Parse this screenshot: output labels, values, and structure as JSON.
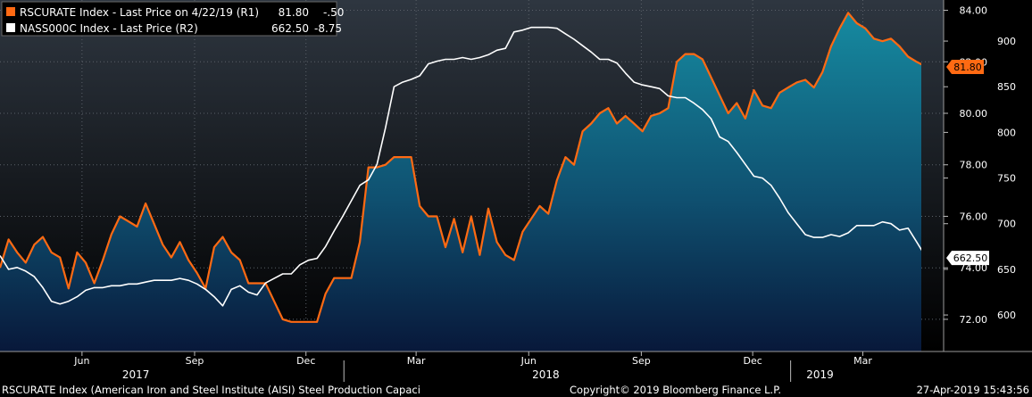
{
  "chart_data": {
    "type": "line",
    "x_axis": {
      "month_labels": [
        "Jun",
        "Sep",
        "Dec",
        "Mar",
        "Jun",
        "Sep",
        "Dec",
        "Mar"
      ],
      "month_dates": [
        "2017-06-01",
        "2017-09-01",
        "2017-12-01",
        "2018-03-01",
        "2018-06-01",
        "2018-09-01",
        "2018-12-01",
        "2019-03-01"
      ],
      "year_labels": [
        "2017",
        "2018",
        "2019"
      ],
      "year_dates": [
        "2017-07-15",
        "2018-06-15",
        "2019-01-25"
      ],
      "range": [
        "2017-03-26",
        "2019-05-06"
      ]
    },
    "y_axes": [
      {
        "id": "R1",
        "side": "right",
        "range": [
          70.75,
          84.4
        ],
        "ticks": [
          "72.00",
          "74.00",
          "76.00",
          "78.00",
          "80.00",
          "82.00",
          "84.00"
        ]
      },
      {
        "id": "R2",
        "side": "right",
        "range": [
          560,
          945
        ],
        "ticks": [
          "600",
          "650",
          "700",
          "750",
          "800",
          "850",
          "900"
        ]
      }
    ],
    "grid": true,
    "series": [
      {
        "name": "RSCURATE Index",
        "axis": "R1",
        "color": "#ff6a13",
        "fill": "gradient-teal",
        "last_value": "81.80",
        "points": [
          [
            "2017-03-26",
            74.0
          ],
          [
            "2017-04-02",
            75.1
          ],
          [
            "2017-04-09",
            74.6
          ],
          [
            "2017-04-16",
            74.2
          ],
          [
            "2017-04-23",
            74.9
          ],
          [
            "2017-04-30",
            75.2
          ],
          [
            "2017-05-07",
            74.6
          ],
          [
            "2017-05-14",
            74.4
          ],
          [
            "2017-05-21",
            73.2
          ],
          [
            "2017-05-28",
            74.6
          ],
          [
            "2017-06-04",
            74.2
          ],
          [
            "2017-06-11",
            73.4
          ],
          [
            "2017-06-18",
            74.3
          ],
          [
            "2017-06-25",
            75.3
          ],
          [
            "2017-07-02",
            76.0
          ],
          [
            "2017-07-09",
            75.8
          ],
          [
            "2017-07-16",
            75.6
          ],
          [
            "2017-07-23",
            76.5
          ],
          [
            "2017-07-30",
            75.7
          ],
          [
            "2017-08-06",
            74.9
          ],
          [
            "2017-08-13",
            74.4
          ],
          [
            "2017-08-20",
            75.0
          ],
          [
            "2017-08-27",
            74.3
          ],
          [
            "2017-09-03",
            73.8
          ],
          [
            "2017-09-10",
            73.2
          ],
          [
            "2017-09-17",
            74.8
          ],
          [
            "2017-09-24",
            75.2
          ],
          [
            "2017-10-01",
            74.6
          ],
          [
            "2017-10-08",
            74.3
          ],
          [
            "2017-10-15",
            73.4
          ],
          [
            "2017-10-22",
            73.4
          ],
          [
            "2017-10-29",
            73.4
          ],
          [
            "2017-11-05",
            72.7
          ],
          [
            "2017-11-12",
            72.0
          ],
          [
            "2017-11-19",
            71.9
          ],
          [
            "2017-11-26",
            71.9
          ],
          [
            "2017-12-03",
            71.9
          ],
          [
            "2017-12-10",
            71.9
          ],
          [
            "2017-12-17",
            73.0
          ],
          [
            "2017-12-24",
            73.6
          ],
          [
            "2017-12-31",
            73.6
          ],
          [
            "2018-01-07",
            73.6
          ],
          [
            "2018-01-14",
            75.0
          ],
          [
            "2018-01-21",
            77.9
          ],
          [
            "2018-01-28",
            77.9
          ],
          [
            "2018-02-04",
            78.0
          ],
          [
            "2018-02-11",
            78.3
          ],
          [
            "2018-02-18",
            78.3
          ],
          [
            "2018-02-25",
            78.3
          ],
          [
            "2018-03-04",
            76.4
          ],
          [
            "2018-03-11",
            76.0
          ],
          [
            "2018-03-18",
            76.0
          ],
          [
            "2018-03-25",
            74.8
          ],
          [
            "2018-04-01",
            75.9
          ],
          [
            "2018-04-08",
            74.6
          ],
          [
            "2018-04-15",
            76.0
          ],
          [
            "2018-04-22",
            74.5
          ],
          [
            "2018-04-29",
            76.3
          ],
          [
            "2018-05-06",
            75.0
          ],
          [
            "2018-05-13",
            74.5
          ],
          [
            "2018-05-20",
            74.3
          ],
          [
            "2018-05-27",
            75.4
          ],
          [
            "2018-06-03",
            75.9
          ],
          [
            "2018-06-10",
            76.4
          ],
          [
            "2018-06-17",
            76.1
          ],
          [
            "2018-06-24",
            77.4
          ],
          [
            "2018-07-01",
            78.3
          ],
          [
            "2018-07-08",
            78.0
          ],
          [
            "2018-07-15",
            79.3
          ],
          [
            "2018-07-22",
            79.6
          ],
          [
            "2018-07-29",
            80.0
          ],
          [
            "2018-08-05",
            80.2
          ],
          [
            "2018-08-12",
            79.6
          ],
          [
            "2018-08-19",
            79.9
          ],
          [
            "2018-08-26",
            79.6
          ],
          [
            "2018-09-02",
            79.3
          ],
          [
            "2018-09-09",
            79.9
          ],
          [
            "2018-09-16",
            80.0
          ],
          [
            "2018-09-23",
            80.2
          ],
          [
            "2018-09-30",
            82.0
          ],
          [
            "2018-10-07",
            82.3
          ],
          [
            "2018-10-14",
            82.3
          ],
          [
            "2018-10-21",
            82.1
          ],
          [
            "2018-10-28",
            81.4
          ],
          [
            "2018-11-04",
            80.7
          ],
          [
            "2018-11-11",
            80.0
          ],
          [
            "2018-11-18",
            80.4
          ],
          [
            "2018-11-25",
            79.8
          ],
          [
            "2018-12-02",
            80.9
          ],
          [
            "2018-12-09",
            80.3
          ],
          [
            "2018-12-16",
            80.2
          ],
          [
            "2018-12-23",
            80.8
          ],
          [
            "2018-12-30",
            81.0
          ],
          [
            "2019-01-06",
            81.2
          ],
          [
            "2019-01-13",
            81.3
          ],
          [
            "2019-01-20",
            81.0
          ],
          [
            "2019-01-27",
            81.6
          ],
          [
            "2019-02-03",
            82.6
          ],
          [
            "2019-02-10",
            83.3
          ],
          [
            "2019-02-17",
            83.9
          ],
          [
            "2019-02-24",
            83.5
          ],
          [
            "2019-03-03",
            83.3
          ],
          [
            "2019-03-10",
            82.9
          ],
          [
            "2019-03-17",
            82.8
          ],
          [
            "2019-03-24",
            82.9
          ],
          [
            "2019-03-31",
            82.6
          ],
          [
            "2019-04-07",
            82.2
          ],
          [
            "2019-04-14",
            82.0
          ],
          [
            "2019-04-22",
            81.8
          ]
        ]
      },
      {
        "name": "NASS000C Index",
        "axis": "R2",
        "color": "#ffffff",
        "last_value": "662.50",
        "points": [
          [
            "2017-03-26",
            665
          ],
          [
            "2017-04-02",
            650
          ],
          [
            "2017-04-09",
            652
          ],
          [
            "2017-04-16",
            648
          ],
          [
            "2017-04-23",
            642
          ],
          [
            "2017-04-30",
            630
          ],
          [
            "2017-05-07",
            615
          ],
          [
            "2017-05-14",
            612
          ],
          [
            "2017-05-21",
            615
          ],
          [
            "2017-05-28",
            620
          ],
          [
            "2017-06-04",
            627
          ],
          [
            "2017-06-11",
            630
          ],
          [
            "2017-06-18",
            630
          ],
          [
            "2017-06-25",
            632
          ],
          [
            "2017-07-02",
            632
          ],
          [
            "2017-07-09",
            634
          ],
          [
            "2017-07-16",
            634
          ],
          [
            "2017-07-23",
            636
          ],
          [
            "2017-07-30",
            638
          ],
          [
            "2017-08-06",
            638
          ],
          [
            "2017-08-13",
            638
          ],
          [
            "2017-08-20",
            640
          ],
          [
            "2017-08-27",
            638
          ],
          [
            "2017-09-03",
            634
          ],
          [
            "2017-09-10",
            628
          ],
          [
            "2017-09-17",
            620
          ],
          [
            "2017-09-24",
            610
          ],
          [
            "2017-10-01",
            628
          ],
          [
            "2017-10-08",
            632
          ],
          [
            "2017-10-15",
            625
          ],
          [
            "2017-10-22",
            622
          ],
          [
            "2017-10-29",
            635
          ],
          [
            "2017-11-05",
            640
          ],
          [
            "2017-11-12",
            645
          ],
          [
            "2017-11-19",
            645
          ],
          [
            "2017-11-26",
            655
          ],
          [
            "2017-12-03",
            660
          ],
          [
            "2017-12-10",
            662
          ],
          [
            "2017-12-17",
            675
          ],
          [
            "2017-12-24",
            692
          ],
          [
            "2017-12-31",
            708
          ],
          [
            "2018-01-07",
            725
          ],
          [
            "2018-01-14",
            742
          ],
          [
            "2018-01-21",
            748
          ],
          [
            "2018-01-28",
            765
          ],
          [
            "2018-02-04",
            805
          ],
          [
            "2018-02-11",
            850
          ],
          [
            "2018-02-18",
            855
          ],
          [
            "2018-02-25",
            858
          ],
          [
            "2018-03-04",
            862
          ],
          [
            "2018-03-11",
            875
          ],
          [
            "2018-03-18",
            878
          ],
          [
            "2018-03-25",
            880
          ],
          [
            "2018-04-01",
            880
          ],
          [
            "2018-04-08",
            882
          ],
          [
            "2018-04-15",
            880
          ],
          [
            "2018-04-22",
            882
          ],
          [
            "2018-04-29",
            885
          ],
          [
            "2018-05-06",
            890
          ],
          [
            "2018-05-13",
            892
          ],
          [
            "2018-05-20",
            910
          ],
          [
            "2018-05-27",
            912
          ],
          [
            "2018-06-03",
            915
          ],
          [
            "2018-06-10",
            915
          ],
          [
            "2018-06-17",
            915
          ],
          [
            "2018-06-24",
            914
          ],
          [
            "2018-07-01",
            908
          ],
          [
            "2018-07-08",
            902
          ],
          [
            "2018-07-15",
            895
          ],
          [
            "2018-07-22",
            888
          ],
          [
            "2018-07-29",
            880
          ],
          [
            "2018-08-05",
            880
          ],
          [
            "2018-08-12",
            876
          ],
          [
            "2018-08-19",
            865
          ],
          [
            "2018-08-26",
            855
          ],
          [
            "2018-09-02",
            852
          ],
          [
            "2018-09-09",
            850
          ],
          [
            "2018-09-16",
            848
          ],
          [
            "2018-09-23",
            840
          ],
          [
            "2018-09-30",
            838
          ],
          [
            "2018-10-07",
            838
          ],
          [
            "2018-10-14",
            832
          ],
          [
            "2018-10-21",
            825
          ],
          [
            "2018-10-28",
            815
          ],
          [
            "2018-11-04",
            795
          ],
          [
            "2018-11-11",
            790
          ],
          [
            "2018-11-18",
            778
          ],
          [
            "2018-11-25",
            765
          ],
          [
            "2018-12-02",
            752
          ],
          [
            "2018-12-09",
            750
          ],
          [
            "2018-12-16",
            742
          ],
          [
            "2018-12-23",
            728
          ],
          [
            "2018-12-30",
            712
          ],
          [
            "2019-01-06",
            700
          ],
          [
            "2019-01-13",
            688
          ],
          [
            "2019-01-20",
            685
          ],
          [
            "2019-01-27",
            685
          ],
          [
            "2019-02-03",
            688
          ],
          [
            "2019-02-10",
            686
          ],
          [
            "2019-02-17",
            690
          ],
          [
            "2019-02-24",
            698
          ],
          [
            "2019-03-03",
            698
          ],
          [
            "2019-03-10",
            698
          ],
          [
            "2019-03-17",
            702
          ],
          [
            "2019-03-24",
            700
          ],
          [
            "2019-03-31",
            693
          ],
          [
            "2019-04-07",
            695
          ],
          [
            "2019-04-14",
            680
          ],
          [
            "2019-04-22",
            662.5
          ]
        ]
      }
    ]
  },
  "legend": [
    {
      "swatch": "#ff6a13",
      "label": "RSCURATE Index - Last Price on 4/22/19 (R1)",
      "value": "81.80",
      "change": "-.50"
    },
    {
      "swatch": "#ffffff",
      "label": "NASS000C Index - Last Price (R2)",
      "value": "662.50",
      "change": "-8.75"
    }
  ],
  "badges": {
    "rscurate": {
      "text": "81.80",
      "bg": "#ff6a13",
      "fg": "#000000"
    },
    "nass": {
      "text": "662.50",
      "bg": "#ffffff",
      "fg": "#000000"
    }
  },
  "footer": {
    "description": "RSCURATE Index (American Iron and Steel Institute (AISI) Steel Production Capaci",
    "copyright": "Copyright© 2019 Bloomberg Finance L.P.",
    "timestamp": "27-Apr-2019 15:43:56"
  },
  "colors": {
    "background_top": "#2e3640",
    "background_bottom": "#000000",
    "fill_top": "#168aa0",
    "fill_bottom": "#08183a",
    "grid": "#5a6068"
  }
}
